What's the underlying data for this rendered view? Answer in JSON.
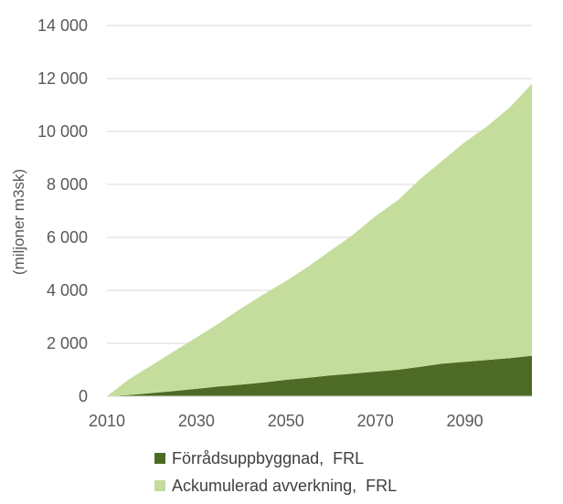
{
  "chart_data": {
    "type": "area",
    "stacked": true,
    "title": "",
    "xlabel": "",
    "ylabel": "(miljoner m3sk)",
    "xlim": [
      2010,
      2105
    ],
    "ylim": [
      0,
      14000
    ],
    "xticks": [
      "2010",
      "2030",
      "2050",
      "2070",
      "2090"
    ],
    "yticks": [
      "0",
      "2 000",
      "4 000",
      "6 000",
      "8 000",
      "10 000",
      "12 000",
      "14 000"
    ],
    "x": [
      2010,
      2015,
      2020,
      2025,
      2030,
      2035,
      2040,
      2045,
      2050,
      2055,
      2060,
      2065,
      2070,
      2075,
      2080,
      2085,
      2090,
      2095,
      2100,
      2105
    ],
    "series": [
      {
        "name": "Förrådsuppbyggnad,  FRL",
        "color": "#4e6b26",
        "values": [
          0,
          50,
          120,
          200,
          280,
          370,
          440,
          520,
          620,
          700,
          790,
          860,
          930,
          1000,
          1110,
          1230,
          1300,
          1370,
          1440,
          1530
        ]
      },
      {
        "name": "Ackumulerad avverkning,  FRL",
        "color": "#c4dd9c",
        "values": [
          0,
          600,
          1050,
          1500,
          1940,
          2380,
          2880,
          3330,
          3730,
          4200,
          4710,
          5240,
          5870,
          6400,
          7090,
          7670,
          8300,
          8830,
          9460,
          10270
        ]
      }
    ],
    "grid": "horizontal",
    "legend_position": "bottom"
  }
}
